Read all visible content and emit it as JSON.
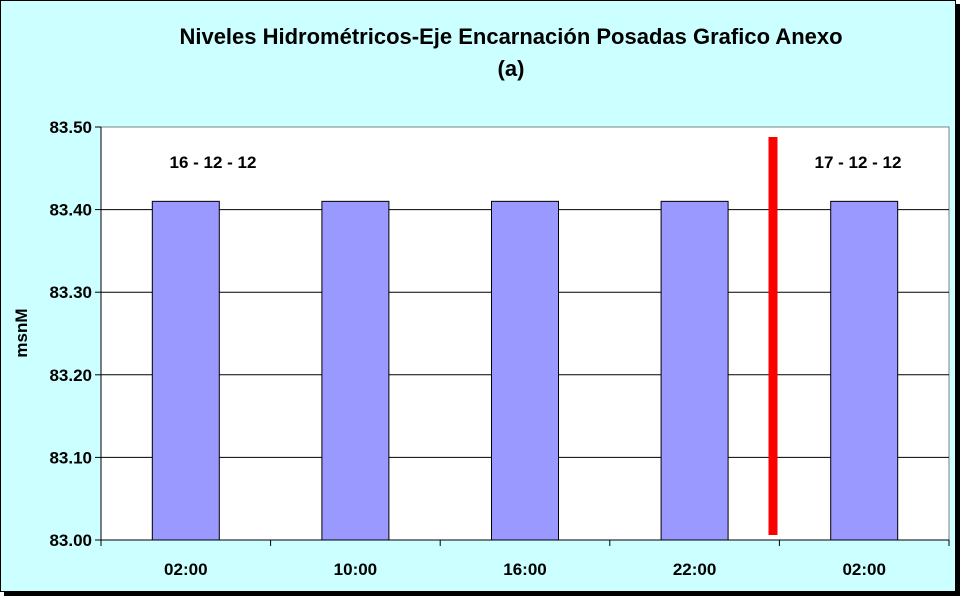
{
  "chart_data": {
    "type": "bar",
    "title": "Niveles Hidrométricos-Eje Encarnación Posadas Grafico Anexo",
    "subtitle": "(a)",
    "xlabel": "",
    "ylabel": "msnM",
    "categories": [
      "02:00",
      "10:00",
      "16:00",
      "22:00",
      "02:00"
    ],
    "values": [
      83.41,
      83.41,
      83.41,
      83.41,
      83.41
    ],
    "ylim": [
      83.0,
      83.5
    ],
    "yticks": [
      "83.00",
      "83.10",
      "83.20",
      "83.30",
      "83.40",
      "83.50"
    ],
    "grid": true,
    "legend": "none",
    "annotations": [
      "16 - 12 - 12",
      "17 - 12 - 12"
    ],
    "bar_color": "#9999ff",
    "divider_color": "#ff0000",
    "plot_background": "#ffffff",
    "background": "#ccffff"
  }
}
